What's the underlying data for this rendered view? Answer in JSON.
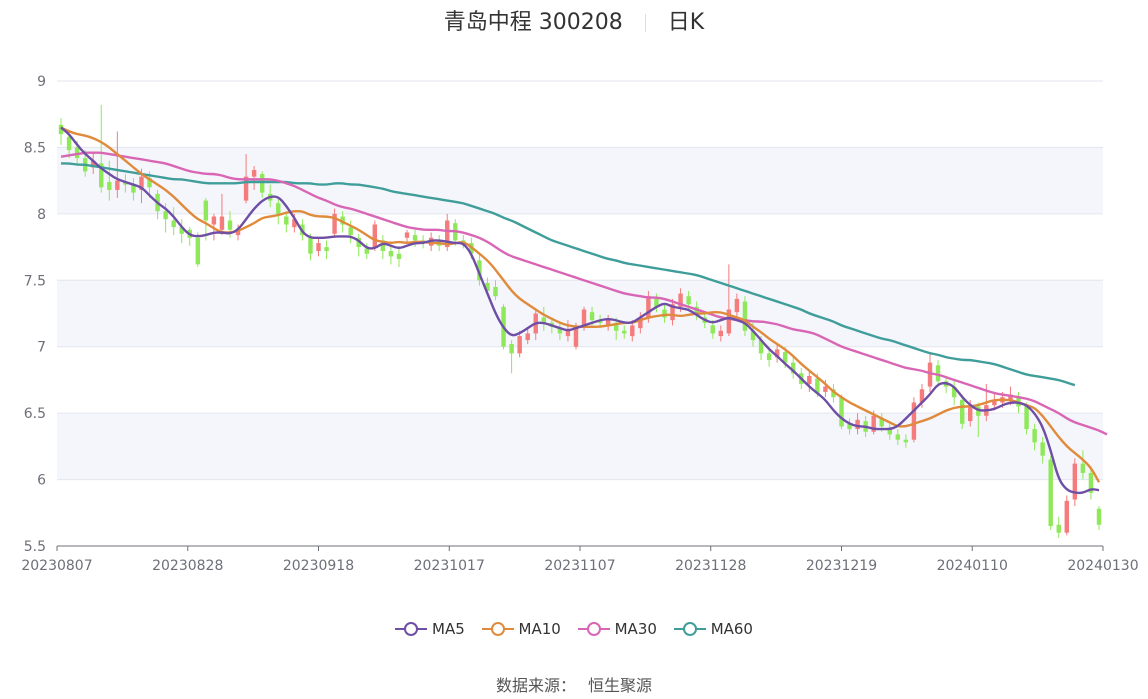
{
  "header": {
    "title": "青岛中程 300208",
    "period": "日K"
  },
  "source": {
    "label": "数据来源：",
    "value": "恒生聚源"
  },
  "colors": {
    "up": "#f47c7c",
    "down": "#8ee85a",
    "MA5": "#6f4ea6",
    "MA10": "#e08a3c",
    "MA30": "#d966b4",
    "MA60": "#3f9d9a"
  },
  "chart_data": {
    "type": "candlestick",
    "y_ticks": [
      "5.5",
      "6",
      "6.5",
      "7",
      "7.5",
      "8",
      "8.5",
      "9"
    ],
    "ylim": [
      5.5,
      9
    ],
    "x_tick_labels": [
      "20230807",
      "20230828",
      "20230918",
      "20231017",
      "20231107",
      "20231128",
      "20231219",
      "20240110",
      "20240130"
    ],
    "legend": [
      "MA5",
      "MA10",
      "MA30",
      "MA60"
    ],
    "candles": [
      [
        8.67,
        8.6,
        8.72,
        8.52
      ],
      [
        8.58,
        8.48,
        8.63,
        8.42
      ],
      [
        8.5,
        8.42,
        8.55,
        8.36
      ],
      [
        8.42,
        8.32,
        8.48,
        8.28
      ],
      [
        8.35,
        8.4,
        8.46,
        8.3
      ],
      [
        8.38,
        8.2,
        8.82,
        8.16
      ],
      [
        8.24,
        8.18,
        8.4,
        8.1
      ],
      [
        8.18,
        8.25,
        8.62,
        8.12
      ],
      [
        8.24,
        8.22,
        8.3,
        8.16
      ],
      [
        8.22,
        8.16,
        8.27,
        8.1
      ],
      [
        8.18,
        8.28,
        8.34,
        8.08
      ],
      [
        8.27,
        8.2,
        8.32,
        8.12
      ],
      [
        8.15,
        8.02,
        8.18,
        7.96
      ],
      [
        8.02,
        7.96,
        8.08,
        7.86
      ],
      [
        7.95,
        7.9,
        8.05,
        7.84
      ],
      [
        7.9,
        7.85,
        7.96,
        7.78
      ],
      [
        7.88,
        7.82,
        7.9,
        7.76
      ],
      [
        7.82,
        7.62,
        7.86,
        7.6
      ],
      [
        8.1,
        7.95,
        8.12,
        7.8
      ],
      [
        7.92,
        7.98,
        8.0,
        7.8
      ],
      [
        7.88,
        7.98,
        8.15,
        7.84
      ],
      [
        7.95,
        7.88,
        8.02,
        7.82
      ],
      [
        7.84,
        7.88,
        7.92,
        7.8
      ],
      [
        8.1,
        8.28,
        8.45,
        8.08
      ],
      [
        8.28,
        8.33,
        8.36,
        8.18
      ],
      [
        8.3,
        8.16,
        8.32,
        8.12
      ],
      [
        8.15,
        8.1,
        8.22,
        8.05
      ],
      [
        8.08,
        8.0,
        8.12,
        7.92
      ],
      [
        7.98,
        7.92,
        8.02,
        7.86
      ],
      [
        7.9,
        7.96,
        8.0,
        7.86
      ],
      [
        7.92,
        7.84,
        7.96,
        7.8
      ],
      [
        7.82,
        7.7,
        7.85,
        7.65
      ],
      [
        7.72,
        7.78,
        7.82,
        7.68
      ],
      [
        7.75,
        7.72,
        7.8,
        7.66
      ],
      [
        7.85,
        8.0,
        8.04,
        7.82
      ],
      [
        7.98,
        7.92,
        8.02,
        7.86
      ],
      [
        7.9,
        7.84,
        7.95,
        7.78
      ],
      [
        7.82,
        7.75,
        7.85,
        7.68
      ],
      [
        7.74,
        7.7,
        7.78,
        7.66
      ],
      [
        7.75,
        7.92,
        7.95,
        7.72
      ],
      [
        7.8,
        7.72,
        7.84,
        7.66
      ],
      [
        7.72,
        7.68,
        7.76,
        7.62
      ],
      [
        7.7,
        7.66,
        7.74,
        7.6
      ],
      [
        7.82,
        7.86,
        7.88,
        7.78
      ],
      [
        7.84,
        7.8,
        7.88,
        7.75
      ],
      [
        7.8,
        7.78,
        7.84,
        7.74
      ],
      [
        7.76,
        7.82,
        7.86,
        7.72
      ],
      [
        7.8,
        7.76,
        7.84,
        7.72
      ],
      [
        7.75,
        7.95,
        8.0,
        7.72
      ],
      [
        7.93,
        7.8,
        7.96,
        7.76
      ],
      [
        7.8,
        7.78,
        7.84,
        7.74
      ],
      [
        7.78,
        7.7,
        7.82,
        7.66
      ],
      [
        7.65,
        7.5,
        7.7,
        7.46
      ],
      [
        7.48,
        7.42,
        7.52,
        7.4
      ],
      [
        7.45,
        7.38,
        7.5,
        7.35
      ],
      [
        7.3,
        7.0,
        7.32,
        6.98
      ],
      [
        7.02,
        6.95,
        7.05,
        6.8
      ],
      [
        6.95,
        7.08,
        7.12,
        6.92
      ],
      [
        7.05,
        7.1,
        7.14,
        7.02
      ],
      [
        7.1,
        7.25,
        7.28,
        7.05
      ],
      [
        7.22,
        7.18,
        7.3,
        7.12
      ],
      [
        7.18,
        7.15,
        7.22,
        7.1
      ],
      [
        7.14,
        7.1,
        7.18,
        7.05
      ],
      [
        7.08,
        7.12,
        7.2,
        7.04
      ],
      [
        7.0,
        7.15,
        7.18,
        6.98
      ],
      [
        7.15,
        7.28,
        7.3,
        7.12
      ],
      [
        7.26,
        7.2,
        7.3,
        7.16
      ],
      [
        7.2,
        7.18,
        7.24,
        7.14
      ],
      [
        7.16,
        7.2,
        7.24,
        7.12
      ],
      [
        7.18,
        7.12,
        7.22,
        7.05
      ],
      [
        7.12,
        7.1,
        7.16,
        7.06
      ],
      [
        7.08,
        7.16,
        7.2,
        7.04
      ],
      [
        7.14,
        7.22,
        7.26,
        7.1
      ],
      [
        7.22,
        7.38,
        7.42,
        7.18
      ],
      [
        7.36,
        7.3,
        7.4,
        7.26
      ],
      [
        7.28,
        7.22,
        7.32,
        7.18
      ],
      [
        7.2,
        7.32,
        7.36,
        7.16
      ],
      [
        7.3,
        7.4,
        7.44,
        7.26
      ],
      [
        7.38,
        7.32,
        7.42,
        7.28
      ],
      [
        7.3,
        7.24,
        7.34,
        7.2
      ],
      [
        7.22,
        7.18,
        7.26,
        7.14
      ],
      [
        7.16,
        7.1,
        7.2,
        7.06
      ],
      [
        7.08,
        7.12,
        7.16,
        7.04
      ],
      [
        7.1,
        7.28,
        7.62,
        7.08
      ],
      [
        7.26,
        7.36,
        7.4,
        7.22
      ],
      [
        7.34,
        7.12,
        7.38,
        7.08
      ],
      [
        7.12,
        7.05,
        7.18,
        7.0
      ],
      [
        7.05,
        6.95,
        7.08,
        6.9
      ],
      [
        6.95,
        6.9,
        7.0,
        6.85
      ],
      [
        6.92,
        6.98,
        7.02,
        6.88
      ],
      [
        6.96,
        6.88,
        7.0,
        6.84
      ],
      [
        6.88,
        6.8,
        6.92,
        6.76
      ],
      [
        6.8,
        6.72,
        6.84,
        6.68
      ],
      [
        6.72,
        6.78,
        6.82,
        6.66
      ],
      [
        6.76,
        6.65,
        6.8,
        6.62
      ],
      [
        6.66,
        6.7,
        6.75,
        6.62
      ],
      [
        6.68,
        6.62,
        6.72,
        6.58
      ],
      [
        6.62,
        6.4,
        6.64,
        6.38
      ],
      [
        6.42,
        6.38,
        6.46,
        6.34
      ],
      [
        6.38,
        6.45,
        6.5,
        6.34
      ],
      [
        6.44,
        6.36,
        6.48,
        6.32
      ],
      [
        6.36,
        6.48,
        6.52,
        6.34
      ],
      [
        6.46,
        6.4,
        6.5,
        6.36
      ],
      [
        6.38,
        6.34,
        6.42,
        6.3
      ],
      [
        6.34,
        6.3,
        6.38,
        6.26
      ],
      [
        6.3,
        6.28,
        6.34,
        6.24
      ],
      [
        6.3,
        6.58,
        6.62,
        6.28
      ],
      [
        6.58,
        6.68,
        6.72,
        6.54
      ],
      [
        6.7,
        6.88,
        6.95,
        6.66
      ],
      [
        6.86,
        6.74,
        6.9,
        6.7
      ],
      [
        6.74,
        6.7,
        6.78,
        6.65
      ],
      [
        6.7,
        6.62,
        6.74,
        6.56
      ],
      [
        6.6,
        6.42,
        6.64,
        6.38
      ],
      [
        6.44,
        6.56,
        6.6,
        6.4
      ],
      [
        6.55,
        6.48,
        6.58,
        6.32
      ],
      [
        6.48,
        6.56,
        6.72,
        6.44
      ],
      [
        6.56,
        6.6,
        6.66,
        6.52
      ],
      [
        6.58,
        6.62,
        6.66,
        6.54
      ],
      [
        6.6,
        6.64,
        6.7,
        6.56
      ],
      [
        6.62,
        6.55,
        6.66,
        6.5
      ],
      [
        6.55,
        6.38,
        6.58,
        6.34
      ],
      [
        6.38,
        6.28,
        6.42,
        6.22
      ],
      [
        6.28,
        6.18,
        6.32,
        6.12
      ],
      [
        6.15,
        5.65,
        6.18,
        5.62
      ],
      [
        5.66,
        5.6,
        5.72,
        5.56
      ],
      [
        5.6,
        5.84,
        5.88,
        5.58
      ],
      [
        5.85,
        6.12,
        6.16,
        5.8
      ],
      [
        6.12,
        6.05,
        6.22,
        6.0
      ],
      [
        6.05,
        5.9,
        6.1,
        5.85
      ],
      [
        5.78,
        5.66,
        5.8,
        5.62
      ]
    ],
    "ma5": [
      8.65,
      8.6,
      8.52,
      8.45,
      8.4,
      8.34,
      8.3,
      8.26,
      8.24,
      8.22,
      8.2,
      8.14,
      8.08,
      8.04,
      7.98,
      7.9,
      7.84,
      7.83,
      7.84,
      7.86,
      7.86,
      7.85,
      7.88,
      7.96,
      8.04,
      8.1,
      8.13,
      8.13,
      8.06,
      7.97,
      7.86,
      7.82,
      7.82,
      7.82,
      7.83,
      7.83,
      7.83,
      7.8,
      7.74,
      7.74,
      7.78,
      7.76,
      7.74,
      7.76,
      7.78,
      7.78,
      7.8,
      7.8,
      7.79,
      7.78,
      7.78,
      7.7,
      7.55,
      7.4,
      7.25,
      7.14,
      7.08,
      7.1,
      7.14,
      7.18,
      7.18,
      7.16,
      7.14,
      7.12,
      7.14,
      7.16,
      7.18,
      7.2,
      7.21,
      7.2,
      7.18,
      7.18,
      7.22,
      7.26,
      7.3,
      7.33,
      7.3,
      7.29,
      7.28,
      7.24,
      7.2,
      7.18,
      7.2,
      7.22,
      7.2,
      7.18,
      7.12,
      7.05,
      6.98,
      6.93,
      6.87,
      6.82,
      6.76,
      6.7,
      6.65,
      6.6,
      6.52,
      6.46,
      6.42,
      6.4,
      6.4,
      6.38,
      6.38,
      6.38,
      6.4,
      6.46,
      6.52,
      6.58,
      6.64,
      6.72,
      6.73,
      6.7,
      6.62,
      6.56,
      6.52,
      6.52,
      6.53,
      6.56,
      6.58,
      6.58,
      6.56,
      6.5,
      6.4,
      6.22,
      6.0,
      5.92,
      5.9,
      5.9,
      5.93,
      5.92
    ],
    "ma10": [
      8.65,
      8.62,
      8.6,
      8.59,
      8.57,
      8.54,
      8.5,
      8.45,
      8.4,
      8.35,
      8.3,
      8.26,
      8.22,
      8.18,
      8.13,
      8.07,
      8.01,
      7.96,
      7.93,
      7.89,
      7.86,
      7.86,
      7.87,
      7.9,
      7.93,
      7.97,
      7.98,
      7.99,
      8.01,
      8.02,
      8.02,
      7.99,
      7.98,
      7.98,
      7.97,
      7.94,
      7.91,
      7.88,
      7.84,
      7.8,
      7.79,
      7.78,
      7.79,
      7.78,
      7.79,
      7.79,
      7.78,
      7.78,
      7.77,
      7.78,
      7.79,
      7.75,
      7.7,
      7.65,
      7.58,
      7.5,
      7.42,
      7.36,
      7.32,
      7.28,
      7.24,
      7.21,
      7.18,
      7.16,
      7.15,
      7.15,
      7.15,
      7.15,
      7.16,
      7.17,
      7.18,
      7.18,
      7.2,
      7.22,
      7.23,
      7.24,
      7.24,
      7.23,
      7.24,
      7.25,
      7.25,
      7.26,
      7.26,
      7.24,
      7.22,
      7.2,
      7.15,
      7.11,
      7.06,
      7.02,
      6.98,
      6.93,
      6.87,
      6.82,
      6.77,
      6.72,
      6.66,
      6.62,
      6.58,
      6.55,
      6.52,
      6.49,
      6.46,
      6.43,
      6.4,
      6.4,
      6.42,
      6.44,
      6.46,
      6.49,
      6.52,
      6.54,
      6.55,
      6.55,
      6.56,
      6.58,
      6.6,
      6.6,
      6.6,
      6.58,
      6.56,
      6.54,
      6.48,
      6.4,
      6.32,
      6.25,
      6.2,
      6.15,
      6.09,
      5.98
    ],
    "ma30": [
      8.43,
      8.44,
      8.45,
      8.46,
      8.46,
      8.46,
      8.45,
      8.44,
      8.43,
      8.42,
      8.41,
      8.4,
      8.39,
      8.38,
      8.36,
      8.34,
      8.32,
      8.31,
      8.3,
      8.3,
      8.29,
      8.27,
      8.26,
      8.26,
      8.26,
      8.26,
      8.26,
      8.25,
      8.23,
      8.21,
      8.18,
      8.15,
      8.12,
      8.1,
      8.07,
      8.05,
      8.04,
      8.02,
      8.0,
      7.98,
      7.96,
      7.94,
      7.92,
      7.9,
      7.89,
      7.88,
      7.88,
      7.88,
      7.87,
      7.87,
      7.86,
      7.84,
      7.82,
      7.79,
      7.75,
      7.71,
      7.68,
      7.66,
      7.64,
      7.62,
      7.6,
      7.58,
      7.56,
      7.54,
      7.52,
      7.5,
      7.48,
      7.46,
      7.44,
      7.42,
      7.4,
      7.39,
      7.38,
      7.37,
      7.37,
      7.36,
      7.34,
      7.32,
      7.3,
      7.28,
      7.26,
      7.24,
      7.22,
      7.21,
      7.2,
      7.2,
      7.19,
      7.19,
      7.18,
      7.17,
      7.15,
      7.13,
      7.12,
      7.11,
      7.09,
      7.06,
      7.03,
      7.0,
      6.98,
      6.96,
      6.94,
      6.92,
      6.9,
      6.88,
      6.86,
      6.84,
      6.83,
      6.82,
      6.8,
      6.79,
      6.77,
      6.75,
      6.73,
      6.71,
      6.69,
      6.67,
      6.65,
      6.64,
      6.63,
      6.62,
      6.61,
      6.59,
      6.56,
      6.53,
      6.5,
      6.46,
      6.43,
      6.41,
      6.39,
      6.37,
      6.34
    ],
    "ma60": [
      8.38,
      8.38,
      8.37,
      8.37,
      8.36,
      8.35,
      8.34,
      8.33,
      8.32,
      8.31,
      8.3,
      8.29,
      8.28,
      8.27,
      8.26,
      8.26,
      8.25,
      8.24,
      8.23,
      8.23,
      8.23,
      8.23,
      8.23,
      8.24,
      8.24,
      8.24,
      8.24,
      8.24,
      8.24,
      8.23,
      8.23,
      8.23,
      8.22,
      8.22,
      8.23,
      8.23,
      8.22,
      8.22,
      8.21,
      8.2,
      8.19,
      8.17,
      8.16,
      8.15,
      8.14,
      8.13,
      8.12,
      8.11,
      8.1,
      8.09,
      8.08,
      8.06,
      8.04,
      8.02,
      8.0,
      7.97,
      7.95,
      7.92,
      7.89,
      7.86,
      7.83,
      7.8,
      7.78,
      7.76,
      7.74,
      7.72,
      7.7,
      7.68,
      7.66,
      7.65,
      7.63,
      7.62,
      7.61,
      7.6,
      7.59,
      7.58,
      7.57,
      7.56,
      7.55,
      7.54,
      7.52,
      7.5,
      7.48,
      7.46,
      7.44,
      7.42,
      7.4,
      7.38,
      7.36,
      7.34,
      7.32,
      7.3,
      7.28,
      7.25,
      7.23,
      7.21,
      7.19,
      7.16,
      7.14,
      7.12,
      7.1,
      7.08,
      7.06,
      7.05,
      7.03,
      7.01,
      6.99,
      6.97,
      6.95,
      6.94,
      6.92,
      6.91,
      6.9,
      6.9,
      6.89,
      6.88,
      6.87,
      6.85,
      6.83,
      6.81,
      6.79,
      6.78,
      6.77,
      6.76,
      6.75,
      6.73,
      6.71
    ]
  }
}
